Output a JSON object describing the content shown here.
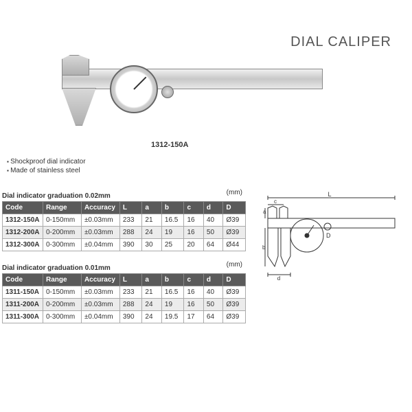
{
  "title": "DIAL CALIPER",
  "product_label": "1312-150A",
  "features": [
    "Shockproof dial indicator",
    "Made of stainless steel"
  ],
  "table1": {
    "title": "Dial indicator graduation 0.02mm",
    "unit": "(mm)",
    "columns": [
      "Code",
      "Range",
      "Accuracy",
      "L",
      "a",
      "b",
      "c",
      "d",
      "D"
    ],
    "rows": [
      [
        "1312-150A",
        "0-150mm",
        "±0.03mm",
        "233",
        "21",
        "16.5",
        "16",
        "40",
        "Ø39"
      ],
      [
        "1312-200A",
        "0-200mm",
        "±0.03mm",
        "288",
        "24",
        "19",
        "16",
        "50",
        "Ø39"
      ],
      [
        "1312-300A",
        "0-300mm",
        "±0.04mm",
        "390",
        "30",
        "25",
        "20",
        "64",
        "Ø44"
      ]
    ]
  },
  "table2": {
    "title": "Dial indicator graduation 0.01mm",
    "unit": "(mm)",
    "columns": [
      "Code",
      "Range",
      "Accuracy",
      "L",
      "a",
      "b",
      "c",
      "d",
      "D"
    ],
    "rows": [
      [
        "1311-150A",
        "0-150mm",
        "±0.03mm",
        "233",
        "21",
        "16.5",
        "16",
        "40",
        "Ø39"
      ],
      [
        "1311-200A",
        "0-200mm",
        "±0.03mm",
        "288",
        "24",
        "19",
        "16",
        "50",
        "Ø39"
      ],
      [
        "1311-300A",
        "0-300mm",
        "±0.04mm",
        "390",
        "24",
        "19.5",
        "17",
        "64",
        "Ø39"
      ]
    ]
  },
  "diagram": {
    "labels": {
      "L": "L",
      "a": "a",
      "b": "b",
      "c": "c",
      "d": "d",
      "D": "D"
    },
    "stroke": "#333333",
    "stroke_width": 1
  },
  "colors": {
    "header_bg": "#5a5a5a",
    "header_text": "#ffffff",
    "row_alt": "#ececec",
    "text": "#333333"
  }
}
